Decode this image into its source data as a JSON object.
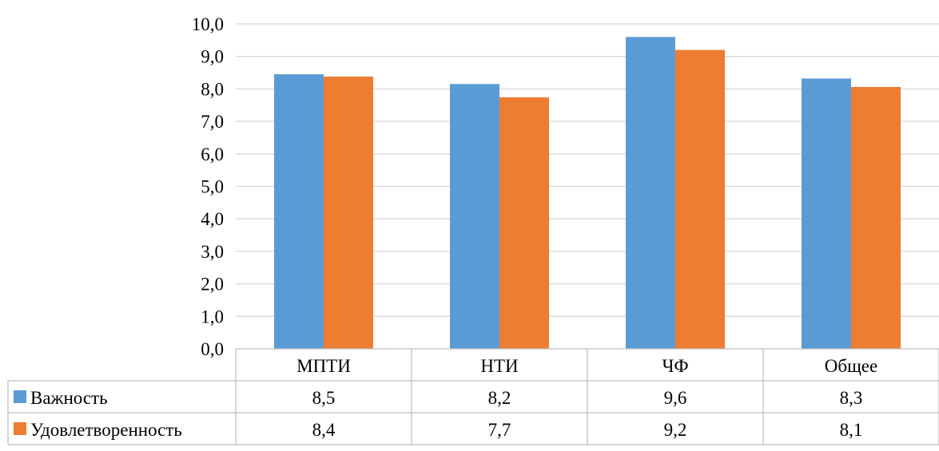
{
  "colors": {
    "series_1": "#5B9BD5",
    "series_2": "#ED7D31",
    "grid": "#D9D9D9",
    "table_border": "#BFBFBF"
  },
  "chart_data": {
    "type": "bar",
    "title": "",
    "xlabel": "",
    "ylabel": "",
    "categories": [
      "МПТИ",
      "НТИ",
      "ЧФ",
      "Общее"
    ],
    "series": [
      {
        "name": "Важность",
        "values": [
          8.45,
          8.15,
          9.6,
          8.32
        ],
        "table_labels": [
          "8,5",
          "8,2",
          "9,6",
          "8,3"
        ]
      },
      {
        "name": "Удовлетворенность",
        "values": [
          8.38,
          7.74,
          9.2,
          8.06
        ],
        "table_labels": [
          "8,4",
          "7,7",
          "9,2",
          "8,1"
        ]
      }
    ],
    "ylim": [
      0,
      10
    ],
    "y_ticks": [
      "0,0",
      "1,0",
      "2,0",
      "3,0",
      "4,0",
      "5,0",
      "6,0",
      "7,0",
      "8,0",
      "9,0",
      "10,0"
    ],
    "grid": true,
    "data_table": true,
    "legend_placement": "data-table"
  }
}
